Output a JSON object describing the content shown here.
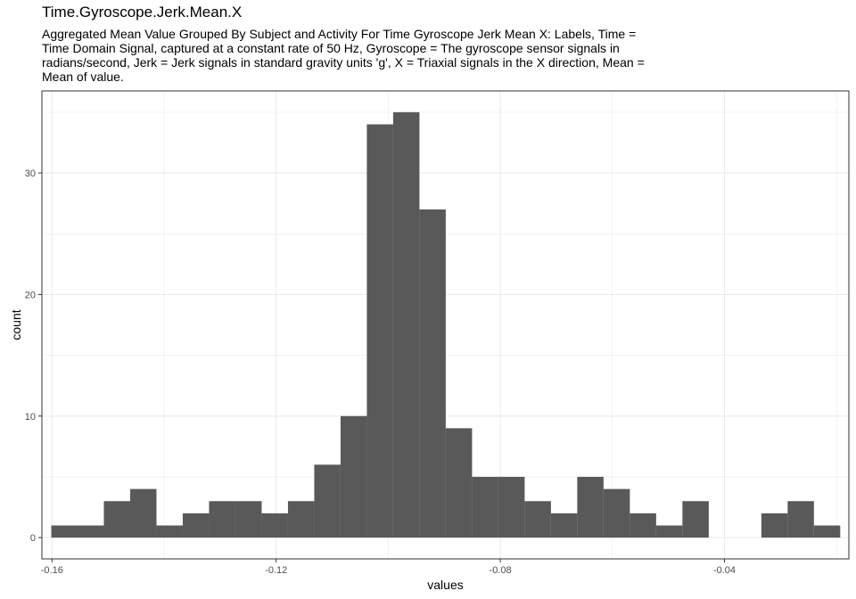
{
  "chart_data": {
    "type": "bar",
    "title": "Time.Gyroscope.Jerk.Mean.X",
    "subtitle": "Aggregated Mean Value Grouped By Subject and Activity For Time Gyroscope Jerk Mean X: Labels, Time = Time Domain Signal, captured at a constant rate of 50 Hz, Gyroscope = The gyroscope sensor signals in radians/second, Jerk = Jerk signals in standard gravity units 'g', X = Triaxial signals in the X direction, Mean = Mean of value.",
    "xlabel": "values",
    "ylabel": "count",
    "xlim": [
      -0.1618,
      -0.0178
    ],
    "ylim": [
      -1.75,
      36.75
    ],
    "xticks": [
      -0.16,
      -0.12,
      -0.08,
      -0.04
    ],
    "xtick_labels": [
      "-0.16",
      "-0.12",
      "-0.08",
      "-0.04"
    ],
    "yticks": [
      0,
      10,
      20,
      30
    ],
    "ytick_labels": [
      "0",
      "10",
      "20",
      "30"
    ],
    "bin_start": -0.16013,
    "bin_width": 0.004693,
    "counts": [
      1,
      1,
      3,
      4,
      1,
      2,
      3,
      3,
      2,
      3,
      6,
      10,
      34,
      35,
      27,
      9,
      5,
      5,
      3,
      2,
      5,
      4,
      2,
      1,
      3,
      0,
      0,
      2,
      3,
      1
    ],
    "grid": true,
    "legend": "none",
    "bar_color": "#595959",
    "grid_color": "#ebebeb",
    "panel_border_color": "#333333"
  }
}
